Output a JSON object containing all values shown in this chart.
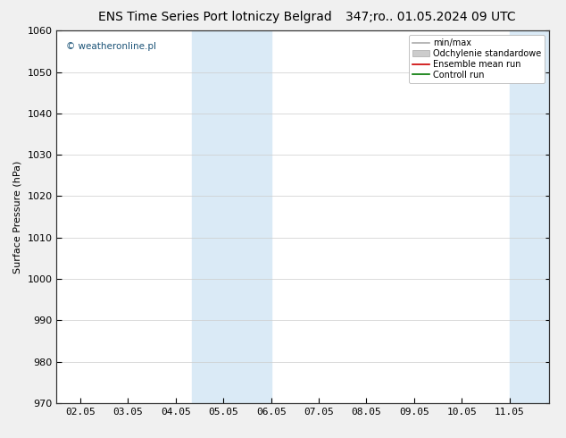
{
  "title_left": "ENS Time Series Port lotniczy Belgrad",
  "title_right": "347;ro.. 01.05.2024 09 UTC",
  "ylabel": "Surface Pressure (hPa)",
  "ylim": [
    970,
    1060
  ],
  "yticks": [
    970,
    980,
    990,
    1000,
    1010,
    1020,
    1030,
    1040,
    1050,
    1060
  ],
  "xtick_labels": [
    "02.05",
    "03.05",
    "04.05",
    "05.05",
    "06.05",
    "07.05",
    "08.05",
    "09.05",
    "10.05",
    "11.05"
  ],
  "xtick_positions": [
    0,
    1,
    2,
    3,
    4,
    5,
    6,
    7,
    8,
    9
  ],
  "xlim": [
    -0.5,
    9.83
  ],
  "shaded_bands": [
    {
      "x_start": 2.33,
      "x_end": 3.0,
      "color": "#daeaf6"
    },
    {
      "x_start": 3.0,
      "x_end": 4.0,
      "color": "#daeaf6"
    },
    {
      "x_start": 9.0,
      "x_end": 9.5,
      "color": "#daeaf6"
    },
    {
      "x_start": 9.5,
      "x_end": 9.83,
      "color": "#daeaf6"
    }
  ],
  "watermark": "© weatheronline.pl",
  "watermark_color": "#1a5276",
  "legend_items": [
    {
      "label": "min/max",
      "type": "line",
      "color": "#aaaaaa"
    },
    {
      "label": "Odchylenie standardowe",
      "type": "fill",
      "color": "#cccccc"
    },
    {
      "label": "Ensemble mean run",
      "type": "line",
      "color": "#cc0000"
    },
    {
      "label": "Controll run",
      "type": "line",
      "color": "#007700"
    }
  ],
  "bg_color": "#f0f0f0",
  "plot_bg_color": "#ffffff",
  "grid_color": "#cccccc",
  "title_fontsize": 10,
  "axis_label_fontsize": 8,
  "tick_fontsize": 8
}
